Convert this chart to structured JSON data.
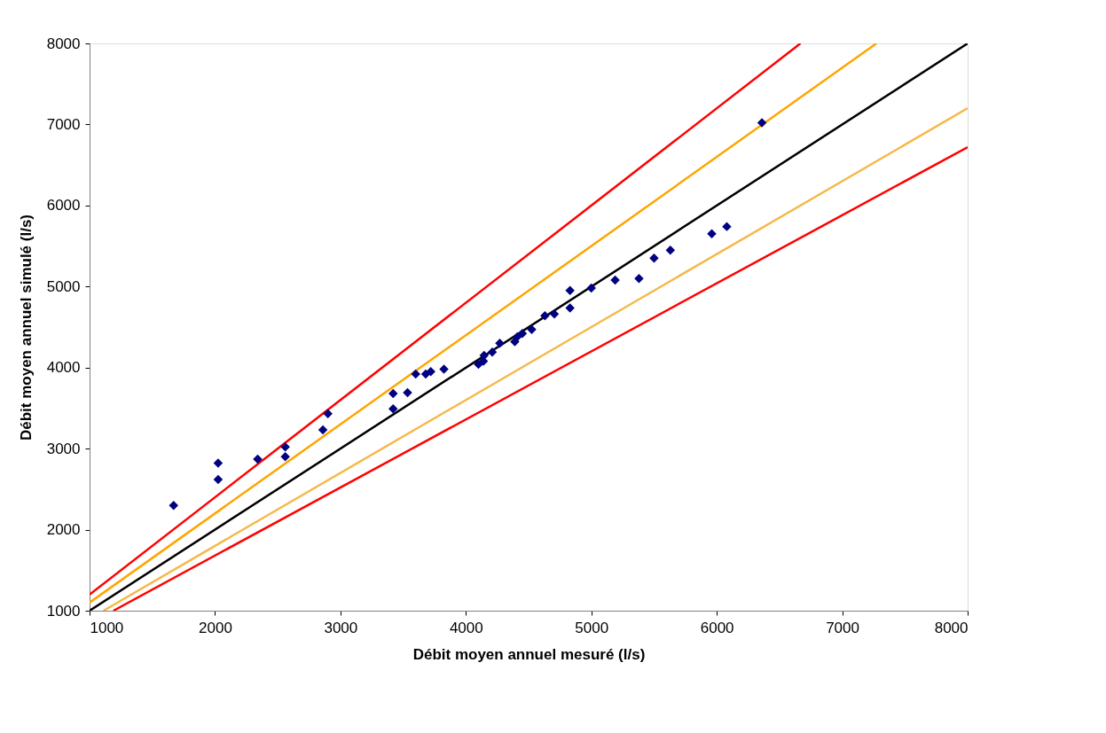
{
  "chart_data": {
    "type": "scatter",
    "xlabel": "Débit moyen annuel mesuré (l/s)",
    "ylabel": "Débit moyen annuel simulé (l/s)",
    "xlim": [
      1000,
      8000
    ],
    "ylim": [
      1000,
      8000
    ],
    "xticks": [
      1000,
      2000,
      3000,
      4000,
      5000,
      6000,
      7000,
      8000
    ],
    "yticks": [
      1000,
      2000,
      3000,
      4000,
      5000,
      6000,
      7000,
      8000
    ],
    "grid": false,
    "series": [
      {
        "type": "line",
        "color": "#ff0000",
        "x": [
          1000,
          6667
        ],
        "values": [
          1200,
          8000
        ]
      },
      {
        "type": "line",
        "color": "#ffa500",
        "x": [
          1000,
          7273
        ],
        "values": [
          1100,
          8000
        ]
      },
      {
        "type": "line",
        "color": "#000000",
        "x": [
          1000,
          8000
        ],
        "values": [
          1000,
          8000
        ]
      },
      {
        "type": "line",
        "color": "#f7b84a",
        "x": [
          1111,
          8000
        ],
        "values": [
          1000,
          7200
        ]
      },
      {
        "type": "line",
        "color": "#ff0000",
        "x": [
          1190,
          8000
        ],
        "values": [
          1000,
          6720
        ]
      },
      {
        "marker": "diamond",
        "color": "#000080",
        "x": [
          1670,
          2025,
          2025,
          2340,
          2560,
          2560,
          2860,
          2900,
          3420,
          3420,
          3535,
          3600,
          3680,
          3720,
          3825,
          4100,
          4140,
          4145,
          4210,
          4270,
          4390,
          4410,
          4450,
          4525,
          4630,
          4705,
          4830,
          4830,
          5000,
          5190,
          5380,
          5500,
          5630,
          5960,
          6080,
          6360
        ],
        "values": [
          2300,
          2620,
          2820,
          2870,
          3020,
          2900,
          3230,
          3430,
          3680,
          3490,
          3690,
          3920,
          3920,
          3950,
          3980,
          4040,
          4080,
          4150,
          4190,
          4300,
          4320,
          4380,
          4420,
          4470,
          4640,
          4660,
          4950,
          4735,
          4980,
          5080,
          5100,
          5350,
          5450,
          5650,
          5740,
          7020
        ]
      }
    ]
  }
}
